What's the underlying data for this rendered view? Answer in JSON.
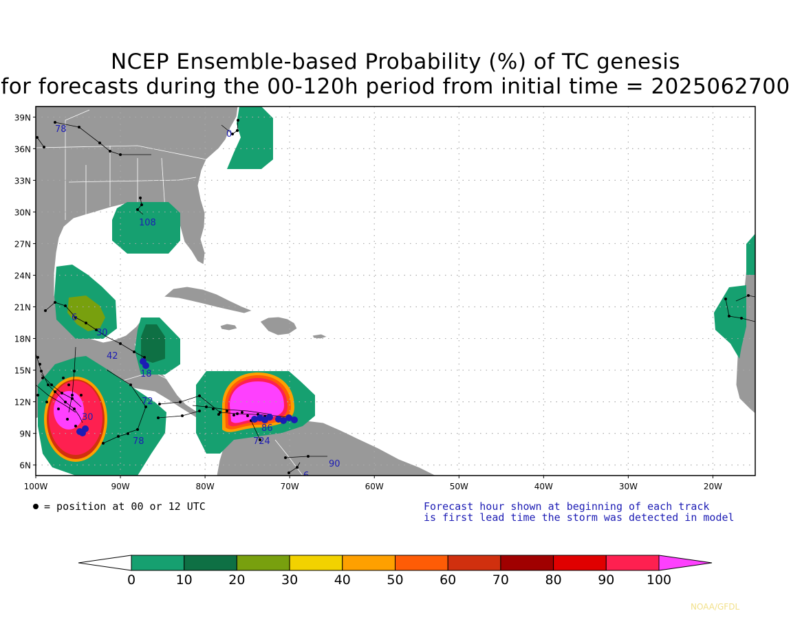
{
  "title": {
    "line1": "NCEP Ensemble-based Probability (%) of TC genesis",
    "line2": "for forecasts during the 00-120h period from initial time = 2025062700"
  },
  "map": {
    "lon_range": [
      -100,
      -15
    ],
    "lat_range": [
      5,
      40
    ],
    "lat_ticks": [
      "39N",
      "36N",
      "33N",
      "30N",
      "27N",
      "24N",
      "21N",
      "18N",
      "15N",
      "12N",
      "9N",
      "6N"
    ],
    "lon_ticks": [
      "100W",
      "90W",
      "80W",
      "70W",
      "60W",
      "50W",
      "40W",
      "30W",
      "20W"
    ],
    "ocean_color": "#ffffff",
    "land_color": "#999999",
    "grid": "dotted"
  },
  "genesis_areas": [
    {
      "region": "Virginia coast",
      "max_pct": 10
    },
    {
      "region": "Northern Gulf of Mexico",
      "max_pct": 10
    },
    {
      "region": "Bay of Campeche",
      "max_pct": 30
    },
    {
      "region": "Yucatan Peninsula",
      "max_pct": 20
    },
    {
      "region": "Gulf of Tehuantepec (East Pacific)",
      "max_pct": 100
    },
    {
      "region": "Southwestern Caribbean",
      "max_pct": 100
    },
    {
      "region": "West Africa coast",
      "max_pct": 10
    }
  ],
  "track_labels": [
    "78",
    "0",
    "108",
    "6",
    "30",
    "42",
    "72",
    "78",
    "86",
    "724",
    "90",
    "6",
    "30",
    "18"
  ],
  "legend": {
    "dot_note": "= position at 00 or 12 UTC",
    "info_line1": "Forecast hour shown at beginning of each track",
    "info_line2": "is first lead time the storm was detected in model",
    "info_color": "#1c1cb4"
  },
  "colorbar": {
    "labels": [
      "0",
      "10",
      "20",
      "30",
      "40",
      "50",
      "60",
      "70",
      "80",
      "90",
      "100"
    ],
    "colors": [
      "#ffffff",
      "#16a070",
      "#0e7044",
      "#78a00e",
      "#f2d200",
      "#fea000",
      "#fe5c06",
      "#d0300e",
      "#a00000",
      "#e00000",
      "#fe2050",
      "#fe40fe"
    ]
  },
  "credit": "NOAA/GFDL"
}
